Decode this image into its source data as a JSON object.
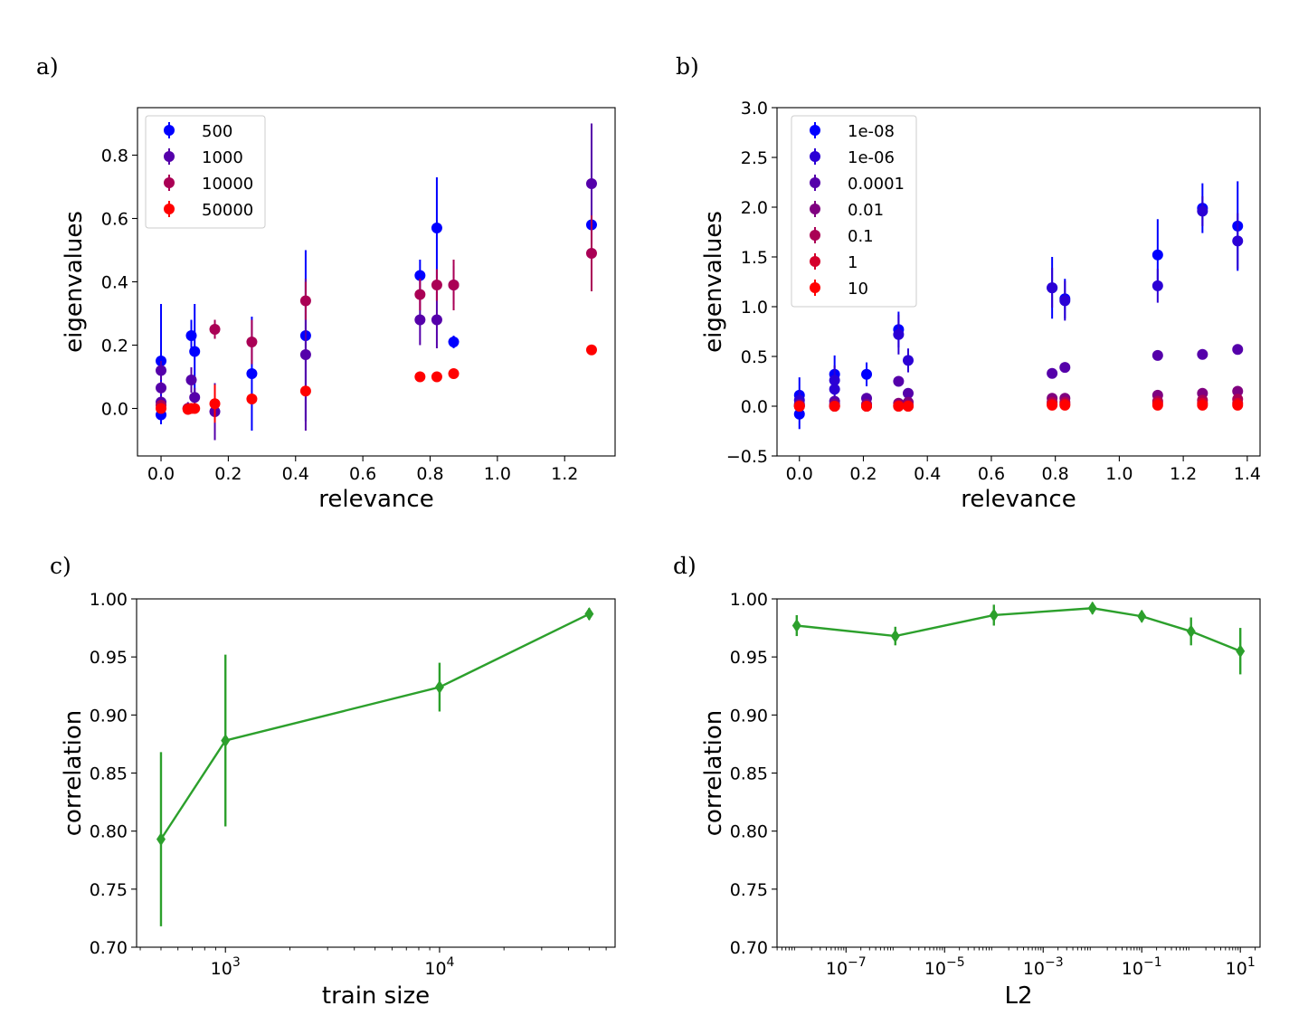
{
  "chart_data": [
    {
      "panel": "a)",
      "type": "scatter",
      "title": "",
      "xlabel": "relevance",
      "ylabel": "eigenvalues",
      "xlim": [
        -0.07,
        1.35
      ],
      "ylim": [
        -0.15,
        0.95
      ],
      "xticks": [
        0.0,
        0.2,
        0.4,
        0.6,
        0.8,
        1.0,
        1.2
      ],
      "xtick_labels": [
        "0.0",
        "0.2",
        "0.4",
        "0.6",
        "0.8",
        "1.0",
        "1.2"
      ],
      "yticks": [
        0.0,
        0.2,
        0.4,
        0.6,
        0.8
      ],
      "ytick_labels": [
        "0.0",
        "0.2",
        "0.4",
        "0.6",
        "0.8"
      ],
      "legend_position": "top-left",
      "series": [
        {
          "name": "500",
          "color": "#0000ff",
          "points": [
            [
              0.0,
              0.15,
              0.18
            ],
            [
              0.0,
              -0.02,
              0.03
            ],
            [
              0.09,
              0.23,
              0.05
            ],
            [
              0.1,
              0.18,
              0.15
            ],
            [
              0.27,
              0.11,
              0.18
            ],
            [
              0.43,
              0.23,
              0.27
            ],
            [
              0.77,
              0.42,
              0.05
            ],
            [
              0.82,
              0.57,
              0.16
            ],
            [
              0.87,
              0.21,
              0.02
            ],
            [
              1.28,
              0.58,
              0.02
            ]
          ]
        },
        {
          "name": "1000",
          "color": "#5500aa",
          "points": [
            [
              0.0,
              0.12,
              0.03
            ],
            [
              0.0,
              0.065,
              0.02
            ],
            [
              0.0,
              0.02,
              0.02
            ],
            [
              0.08,
              0.0,
              0.02
            ],
            [
              0.09,
              0.09,
              0.04
            ],
            [
              0.1,
              0.035,
              0.03
            ],
            [
              0.16,
              -0.01,
              0.09
            ],
            [
              0.43,
              0.17,
              0.24
            ],
            [
              0.77,
              0.28,
              0.08
            ],
            [
              0.82,
              0.28,
              0.09
            ],
            [
              0.87,
              0.39,
              0.06
            ],
            [
              1.28,
              0.71,
              0.19
            ]
          ]
        },
        {
          "name": "10000",
          "color": "#aa0055",
          "points": [
            [
              0.0,
              0.01,
              0.01
            ],
            [
              0.08,
              0.0,
              0.01
            ],
            [
              0.16,
              0.25,
              0.03
            ],
            [
              0.27,
              0.21,
              0.07
            ],
            [
              0.43,
              0.34,
              0.06
            ],
            [
              0.77,
              0.36,
              0.05
            ],
            [
              0.82,
              0.39,
              0.05
            ],
            [
              0.87,
              0.39,
              0.08
            ],
            [
              1.28,
              0.49,
              0.12
            ]
          ]
        },
        {
          "name": "50000",
          "color": "#ff0000",
          "points": [
            [
              0.0,
              0.0,
              0.01
            ],
            [
              0.08,
              -0.003,
              0.005
            ],
            [
              0.09,
              0.0,
              0.005
            ],
            [
              0.1,
              0.0,
              0.005
            ],
            [
              0.16,
              0.015,
              0.06
            ],
            [
              0.27,
              0.03,
              0.01
            ],
            [
              0.43,
              0.055,
              0.01
            ],
            [
              0.77,
              0.1,
              0.01
            ],
            [
              0.82,
              0.1,
              0.01
            ],
            [
              0.87,
              0.11,
              0.01
            ],
            [
              1.28,
              0.185,
              0.01
            ]
          ]
        }
      ]
    },
    {
      "panel": "b)",
      "type": "scatter",
      "title": "",
      "xlabel": "relevance",
      "ylabel": "eigenvalues",
      "xlim": [
        -0.07,
        1.44
      ],
      "ylim": [
        -0.5,
        3.0
      ],
      "xticks": [
        0.0,
        0.2,
        0.4,
        0.6,
        0.8,
        1.0,
        1.2,
        1.4
      ],
      "xtick_labels": [
        "0.0",
        "0.2",
        "0.4",
        "0.6",
        "0.8",
        "1.0",
        "1.2",
        "1.4"
      ],
      "yticks": [
        -0.5,
        0.0,
        0.5,
        1.0,
        1.5,
        2.0,
        2.5,
        3.0
      ],
      "ytick_labels": [
        "−0.5",
        "0.0",
        "0.5",
        "1.0",
        "1.5",
        "2.0",
        "2.5",
        "3.0"
      ],
      "legend_position": "top-left",
      "series": [
        {
          "name": "1e-08",
          "color": "#0000ff",
          "points": [
            [
              0.0,
              0.11,
              0.18
            ],
            [
              0.0,
              -0.08,
              0.15
            ],
            [
              0.11,
              0.32,
              0.19
            ],
            [
              0.21,
              0.32,
              0.12
            ],
            [
              0.31,
              0.77,
              0.18
            ],
            [
              0.79,
              1.19,
              0.31
            ],
            [
              0.83,
              1.08,
              0.2
            ],
            [
              1.12,
              1.52,
              0.36
            ],
            [
              1.26,
              1.99,
              0.25
            ],
            [
              1.37,
              1.81,
              0.45
            ]
          ]
        },
        {
          "name": "1e-06",
          "color": "#2b00d5",
          "points": [
            [
              0.0,
              0.06,
              0.1
            ],
            [
              0.11,
              0.26,
              0.15
            ],
            [
              0.11,
              0.17,
              0.12
            ],
            [
              0.31,
              0.72,
              0.2
            ],
            [
              0.34,
              0.46,
              0.12
            ],
            [
              0.79,
              1.19,
              0.2
            ],
            [
              0.83,
              1.06,
              0.2
            ],
            [
              1.12,
              1.21,
              0.17
            ],
            [
              1.26,
              1.96,
              0.15
            ],
            [
              1.37,
              1.66,
              0.28
            ]
          ]
        },
        {
          "name": "0.0001",
          "color": "#5500aa",
          "points": [
            [
              0.0,
              0.02,
              0.03
            ],
            [
              0.11,
              0.05,
              0.03
            ],
            [
              0.21,
              0.08,
              0.03
            ],
            [
              0.31,
              0.25,
              0.03
            ],
            [
              0.34,
              0.13,
              0.03
            ],
            [
              0.79,
              0.33,
              0.03
            ],
            [
              0.83,
              0.39,
              0.03
            ],
            [
              1.12,
              0.51,
              0.03
            ],
            [
              1.26,
              0.52,
              0.03
            ],
            [
              1.37,
              0.57,
              0.03
            ]
          ]
        },
        {
          "name": "0.01",
          "color": "#7f0080",
          "points": [
            [
              0.0,
              0.01,
              0.02
            ],
            [
              0.11,
              0.02,
              0.02
            ],
            [
              0.21,
              0.02,
              0.02
            ],
            [
              0.31,
              0.03,
              0.02
            ],
            [
              0.34,
              0.04,
              0.02
            ],
            [
              0.79,
              0.08,
              0.02
            ],
            [
              0.83,
              0.08,
              0.02
            ],
            [
              1.12,
              0.11,
              0.02
            ],
            [
              1.26,
              0.13,
              0.02
            ],
            [
              1.37,
              0.15,
              0.02
            ]
          ]
        },
        {
          "name": "0.1",
          "color": "#aa0055",
          "points": [
            [
              0.0,
              0.0,
              0.01
            ],
            [
              0.11,
              0.0,
              0.01
            ],
            [
              0.21,
              0.0,
              0.01
            ],
            [
              0.31,
              0.01,
              0.01
            ],
            [
              0.34,
              0.01,
              0.01
            ],
            [
              0.79,
              0.04,
              0.01
            ],
            [
              0.83,
              0.04,
              0.01
            ],
            [
              1.12,
              0.05,
              0.01
            ],
            [
              1.26,
              0.06,
              0.01
            ],
            [
              1.37,
              0.07,
              0.01
            ]
          ]
        },
        {
          "name": "1",
          "color": "#d5002b",
          "points": [
            [
              0.0,
              0.0,
              0.01
            ],
            [
              0.11,
              0.0,
              0.01
            ],
            [
              0.21,
              0.0,
              0.01
            ],
            [
              0.31,
              0.0,
              0.01
            ],
            [
              0.34,
              0.0,
              0.01
            ],
            [
              0.79,
              0.02,
              0.01
            ],
            [
              0.83,
              0.02,
              0.01
            ],
            [
              1.12,
              0.03,
              0.01
            ],
            [
              1.26,
              0.03,
              0.01
            ],
            [
              1.37,
              0.03,
              0.01
            ]
          ]
        },
        {
          "name": "10",
          "color": "#ff0000",
          "points": [
            [
              0.0,
              0.0,
              0.01
            ],
            [
              0.11,
              0.0,
              0.01
            ],
            [
              0.21,
              0.0,
              0.01
            ],
            [
              0.31,
              0.0,
              0.01
            ],
            [
              0.34,
              0.0,
              0.01
            ],
            [
              0.79,
              0.01,
              0.01
            ],
            [
              0.83,
              0.01,
              0.01
            ],
            [
              1.12,
              0.01,
              0.01
            ],
            [
              1.26,
              0.01,
              0.01
            ],
            [
              1.37,
              0.01,
              0.01
            ]
          ]
        }
      ]
    },
    {
      "panel": "c)",
      "type": "line",
      "title": "",
      "xlabel": "train size",
      "ylabel": "correlation",
      "xscale": "log",
      "xlim_log10": [
        2.585,
        4.82
      ],
      "ylim": [
        0.7,
        1.0
      ],
      "xticks_log10": [
        3,
        4
      ],
      "xtick_labels": [
        {
          "base": "10",
          "exp": "3"
        },
        {
          "base": "10",
          "exp": "4"
        }
      ],
      "yticks": [
        0.7,
        0.75,
        0.8,
        0.85,
        0.9,
        0.95,
        1.0
      ],
      "ytick_labels": [
        "0.70",
        "0.75",
        "0.80",
        "0.85",
        "0.90",
        "0.95",
        "1.00"
      ],
      "series": [
        {
          "name": "correlation",
          "color": "#2ca02c",
          "x": [
            500,
            1000,
            10000,
            50000
          ],
          "values": [
            0.793,
            0.878,
            0.924,
            0.987
          ],
          "errors": [
            0.075,
            0.074,
            0.021,
            0.005
          ]
        }
      ]
    },
    {
      "panel": "d)",
      "type": "line",
      "title": "",
      "xlabel": "L2",
      "ylabel": "correlation",
      "xscale": "log",
      "xlim_log10": [
        -8.4,
        1.4
      ],
      "ylim": [
        0.7,
        1.0
      ],
      "xticks_log10": [
        -7,
        -5,
        -3,
        -1,
        1
      ],
      "xtick_labels": [
        {
          "base": "10",
          "exp": "−7"
        },
        {
          "base": "10",
          "exp": "−5"
        },
        {
          "base": "10",
          "exp": "−3"
        },
        {
          "base": "10",
          "exp": "−1"
        },
        {
          "base": "10",
          "exp": "1"
        }
      ],
      "yticks": [
        0.7,
        0.75,
        0.8,
        0.85,
        0.9,
        0.95,
        1.0
      ],
      "ytick_labels": [
        "0.70",
        "0.75",
        "0.80",
        "0.85",
        "0.90",
        "0.95",
        "1.00"
      ],
      "series": [
        {
          "name": "correlation",
          "color": "#2ca02c",
          "x": [
            1e-08,
            1e-06,
            0.0001,
            0.01,
            0.1,
            1,
            10
          ],
          "values": [
            0.977,
            0.968,
            0.986,
            0.992,
            0.985,
            0.972,
            0.955
          ],
          "errors": [
            0.009,
            0.008,
            0.009,
            0.005,
            0.005,
            0.012,
            0.02
          ]
        }
      ]
    }
  ]
}
